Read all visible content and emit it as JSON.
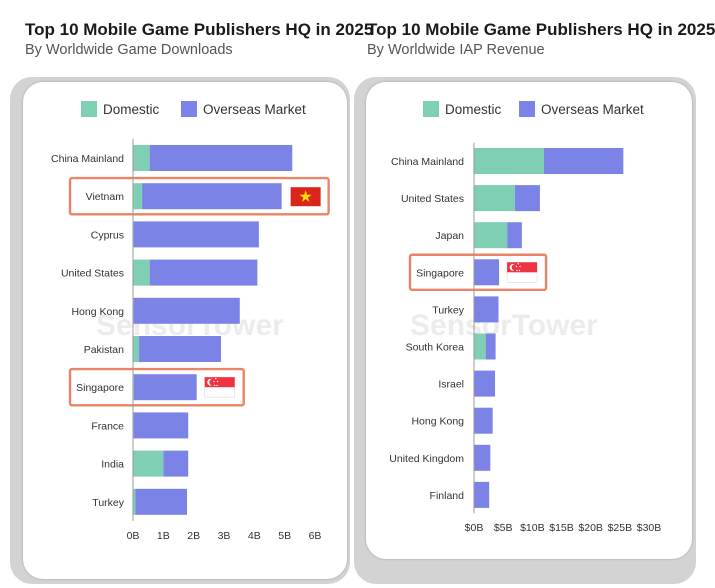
{
  "colors": {
    "domestic": "#7fcfb4",
    "overseas": "#7b83e6",
    "highlight": "#e98566",
    "watermark": "#ececec"
  },
  "watermark": "SensorTower",
  "chart_data": [
    {
      "type": "bar",
      "orientation": "horizontal",
      "stacked": true,
      "title": "Top 10 Mobile Game Publishers HQ in 2025",
      "subtitle": "By Worldwide Game Downloads",
      "legend": [
        "Domestic",
        "Overseas Market"
      ],
      "legend_position": "top",
      "categories": [
        "China Mainland",
        "Vietnam",
        "Cyprus",
        "United States",
        "Hong Kong",
        "Pakistan",
        "Singapore",
        "France",
        "India",
        "Turkey"
      ],
      "series": [
        {
          "name": "Domestic",
          "values": [
            0.55,
            0.3,
            0.02,
            0.55,
            0.02,
            0.2,
            0.03,
            0.02,
            1.0,
            0.08
          ]
        },
        {
          "name": "Overseas Market",
          "values": [
            4.7,
            4.6,
            4.13,
            3.55,
            3.5,
            2.7,
            2.07,
            1.8,
            0.82,
            1.7
          ]
        }
      ],
      "xlim": [
        0,
        6
      ],
      "xticks": [
        "0B",
        "1B",
        "2B",
        "3B",
        "4B",
        "5B",
        "6B"
      ],
      "highlighted": [
        "Vietnam",
        "Singapore"
      ],
      "flags": {
        "Vietnam": "vietnam-flag",
        "Singapore": "singapore-flag"
      },
      "grid": false
    },
    {
      "type": "bar",
      "orientation": "horizontal",
      "stacked": true,
      "title": "Top 10 Mobile Game Publishers HQ in 2025",
      "subtitle": "By Worldwide IAP Revenue",
      "legend": [
        "Domestic",
        "Overseas Market"
      ],
      "legend_position": "top",
      "categories": [
        "China Mainland",
        "United States",
        "Japan",
        "Singapore",
        "Turkey",
        "South Korea",
        "Israel",
        "Hong Kong",
        "United Kingdom",
        "Finland"
      ],
      "series": [
        {
          "name": "Domestic",
          "values": [
            12.0,
            7.0,
            5.7,
            0.0,
            0.0,
            2.0,
            0.0,
            0.0,
            0.0,
            0.0
          ]
        },
        {
          "name": "Overseas Market",
          "values": [
            13.6,
            4.3,
            2.5,
            4.3,
            4.2,
            1.7,
            3.6,
            3.2,
            2.8,
            2.6
          ]
        }
      ],
      "xlim": [
        0,
        30
      ],
      "xticks": [
        "$0B",
        "$5B",
        "$10B",
        "$15B",
        "$20B",
        "$25B",
        "$30B"
      ],
      "highlighted": [
        "Singapore"
      ],
      "flags": {
        "Singapore": "singapore-flag"
      },
      "grid": false
    }
  ]
}
